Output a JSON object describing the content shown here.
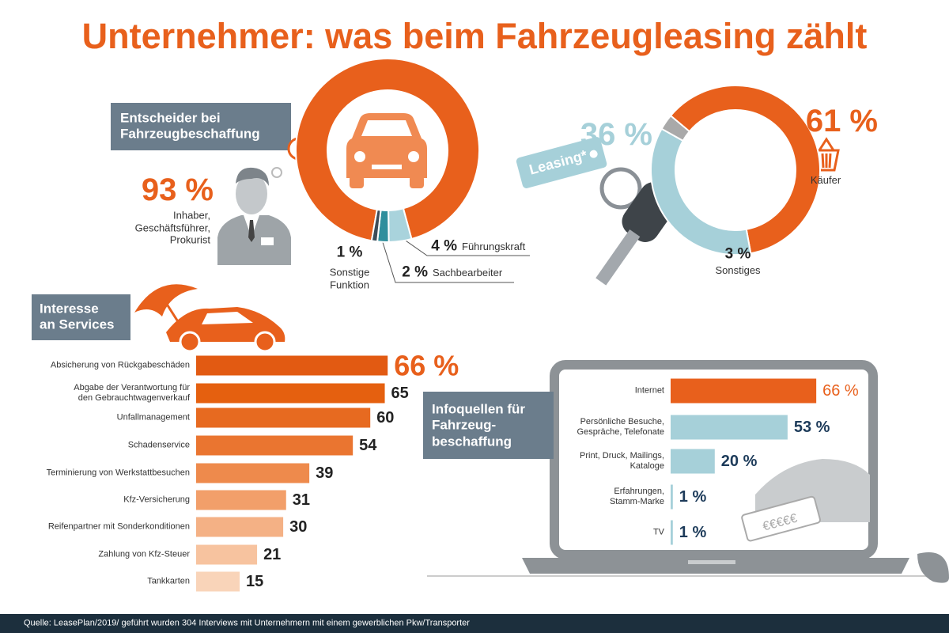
{
  "title": "Unternehmer: was beim Fahrzeugleasing zählt",
  "source": "Quelle: LeasePlan/2019/ geführt wurden 304 Interviews mit Unternehmern mit einem gewerblichen Pkw/Transporter",
  "chart_data": [
    {
      "type": "donut",
      "title": "Entscheider bei\nFahrzeugbeschaffung",
      "categories": [
        "Inhaber,\nGeschäftsführer,\nProkurist",
        "Führungskraft",
        "Sachbearbeiter",
        "Sonstige\nFunktion"
      ],
      "values": [
        93,
        4,
        2,
        1
      ],
      "value_labels": [
        "93 %",
        "4 %",
        "2 %",
        "1 %"
      ],
      "colors": [
        "#e8601c",
        "#a9d3dc",
        "#2f8e9c",
        "#3c4c58"
      ]
    },
    {
      "type": "donut",
      "categories": [
        "Käufer",
        "Leasing*",
        "Sonstiges"
      ],
      "values": [
        61,
        36,
        3
      ],
      "value_labels": [
        "61 %",
        "36 %",
        "3 %"
      ],
      "colors": [
        "#e8601c",
        "#a6d0d9",
        "#a9a9a9"
      ]
    },
    {
      "type": "hbar",
      "title": "Interesse\nan Services",
      "categories": [
        "Absicherung von Rückgabeschäden",
        "Abgabe der Verantwortung für\nden Gebrauchtwagenverkauf",
        "Unfallmanagement",
        "Schadenservice",
        "Terminierung von Werkstattbesuchen",
        "Kfz-Versicherung",
        "Reifenpartner mit Sonderkonditionen",
        "Zahlung von Kfz-Steuer",
        "Tankkarten"
      ],
      "values": [
        66,
        65,
        60,
        54,
        39,
        31,
        30,
        21,
        15
      ],
      "value_labels": [
        "66 %",
        "65",
        "60",
        "54",
        "39",
        "31",
        "30",
        "21",
        "15"
      ],
      "colors": [
        "#e25a12",
        "#e5600f",
        "#e76a20",
        "#ea7530",
        "#ee8a4c",
        "#f29f6a",
        "#f4b185",
        "#f7c39f",
        "#f9d4b9"
      ]
    },
    {
      "type": "hbar",
      "title": "Infoquellen für\nFahrzeug-\nbeschaffung",
      "categories": [
        "Internet",
        "Persönliche Besuche,\nGespräche, Telefonate",
        "Print, Druck, Mailings,\nKataloge",
        "Erfahrungen,\nStamm-Marke",
        "TV"
      ],
      "values": [
        66,
        53,
        20,
        1,
        1
      ],
      "value_labels": [
        "66 %",
        "53 %",
        "20 %",
        "1 %",
        "1 %"
      ],
      "colors": [
        "#e8601c",
        "#a6d0d9",
        "#a6d0d9",
        "#a6d0d9",
        "#a6d0d9"
      ]
    }
  ]
}
